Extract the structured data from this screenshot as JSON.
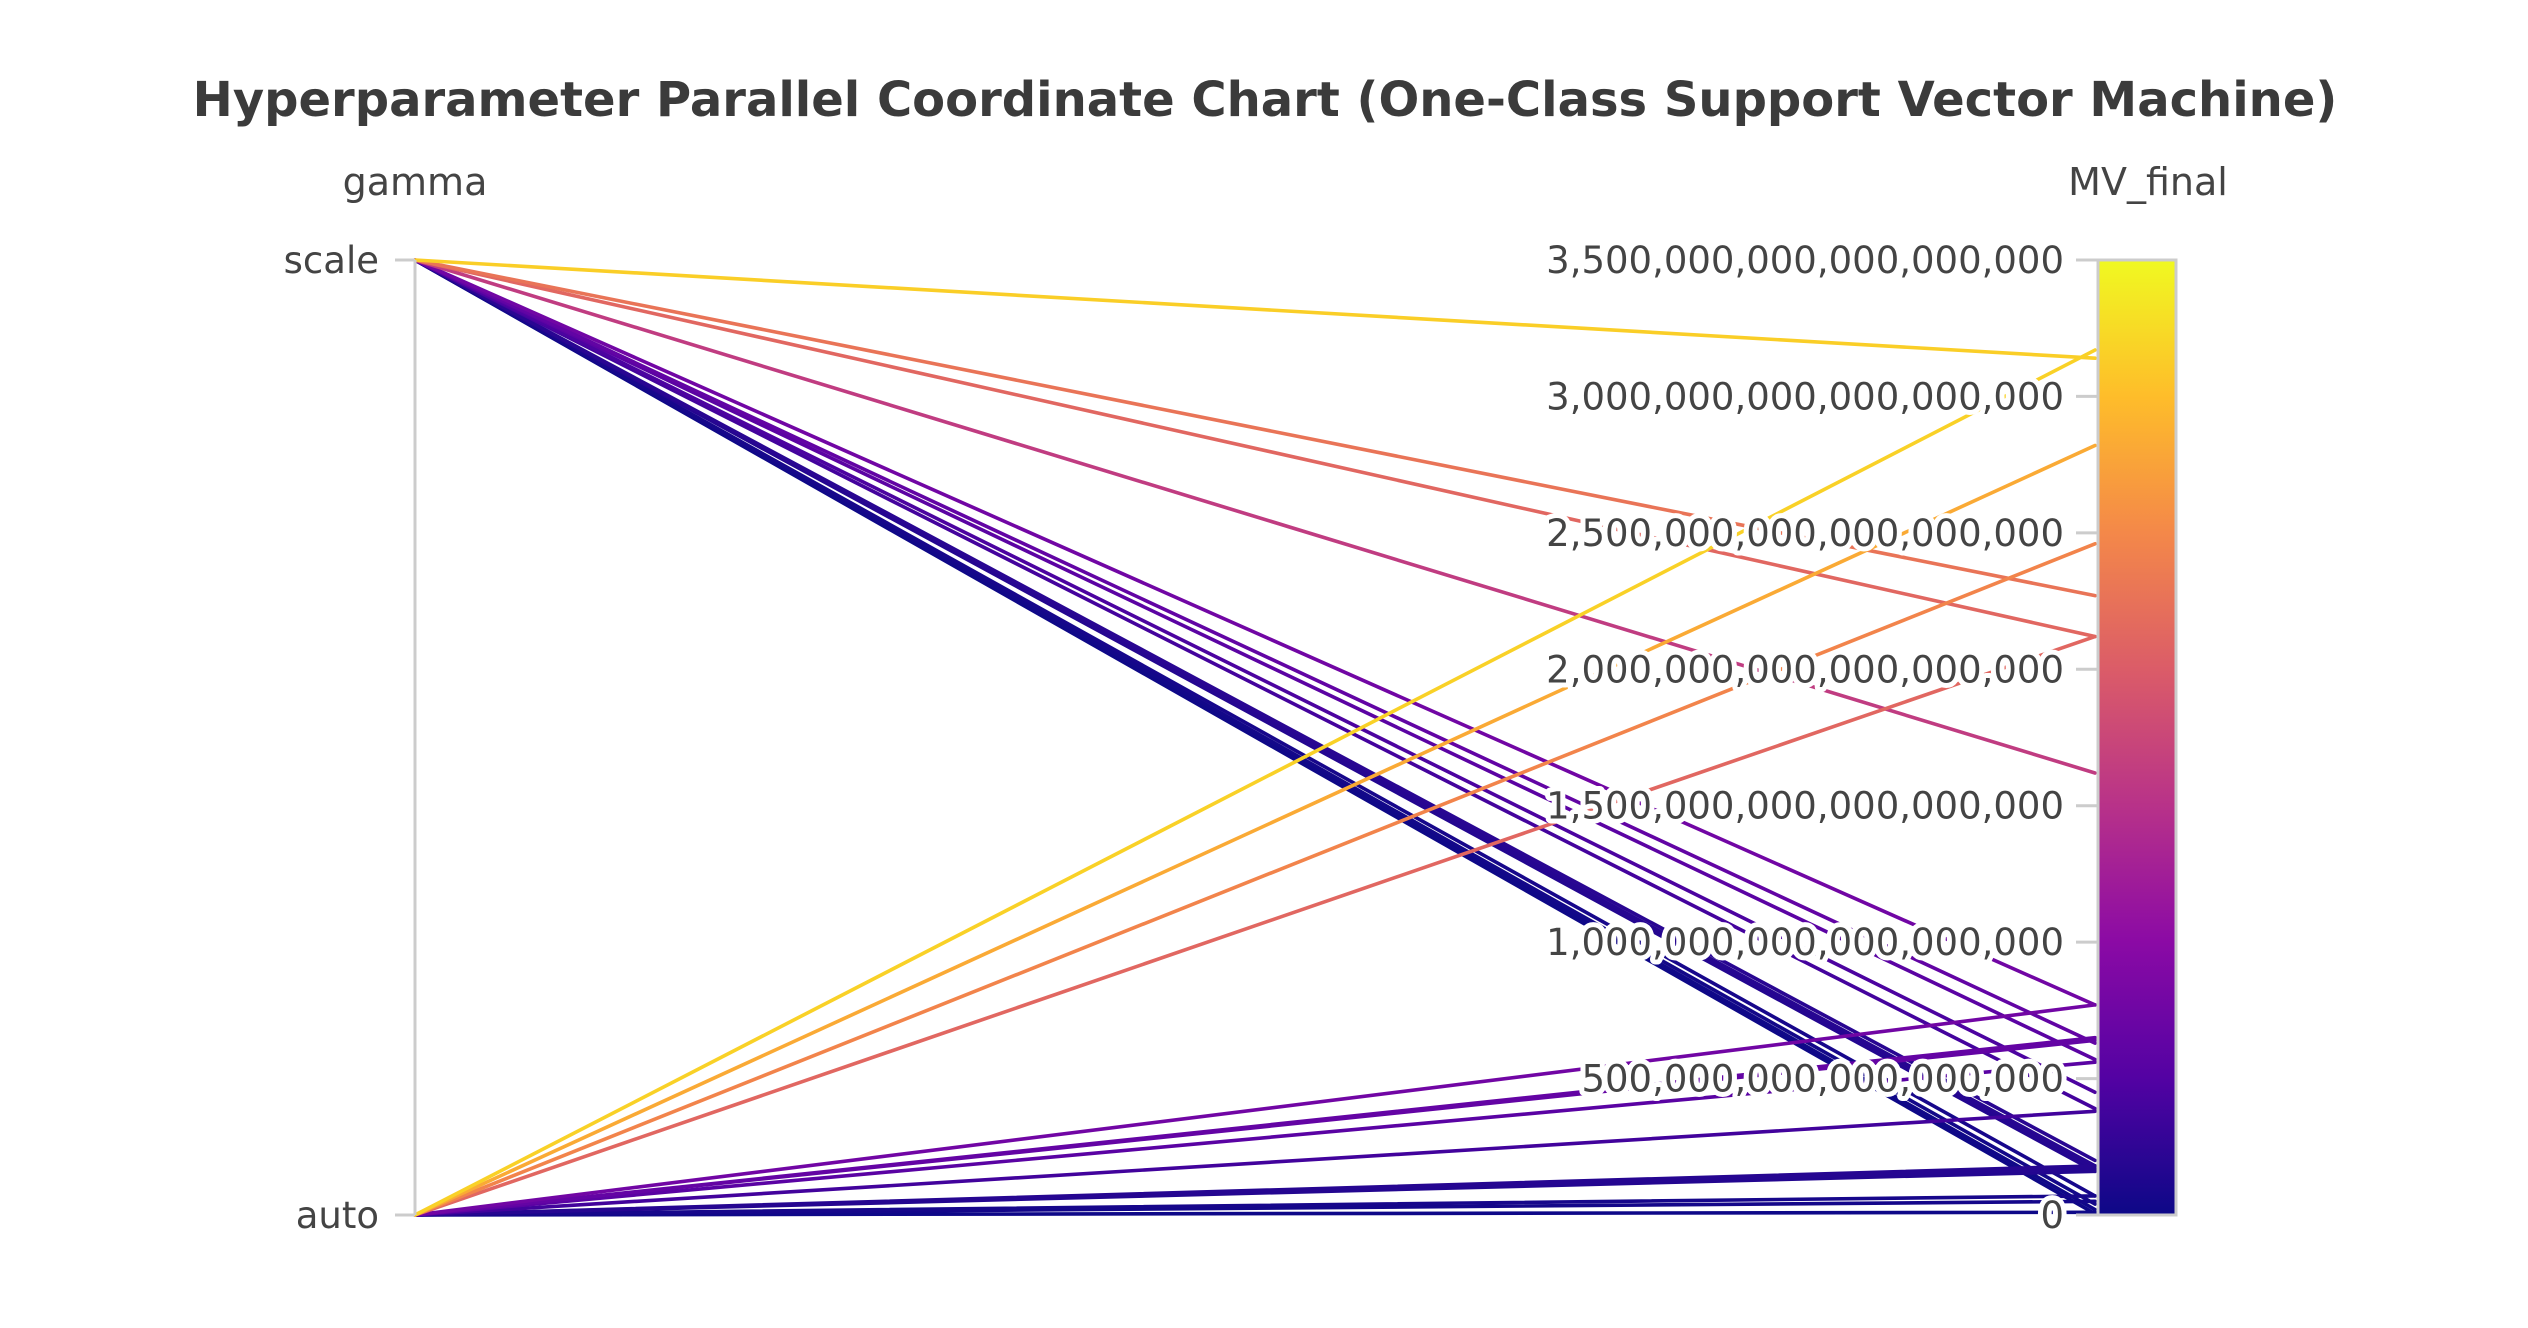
{
  "chart_data": {
    "type": "parallel_coordinates",
    "title": "Hyperparameter Parallel Coordinate Chart (One-Class Support Vector Machine)",
    "dimensions": [
      {
        "label": "gamma",
        "kind": "categorical",
        "categories": [
          "scale",
          "auto"
        ]
      },
      {
        "label": "MV_final",
        "kind": "numeric",
        "range": [
          0,
          3500000000000000000
        ],
        "ticks": [
          {
            "value": 0,
            "label": "0"
          },
          {
            "value": 500000000000000000,
            "label": "500,000,000,000,000,000"
          },
          {
            "value": 1000000000000000000,
            "label": "1,000,000,000,000,000,000"
          },
          {
            "value": 1500000000000000000,
            "label": "1,500,000,000,000,000,000"
          },
          {
            "value": 2000000000000000000,
            "label": "2,000,000,000,000,000,000"
          },
          {
            "value": 2500000000000000000,
            "label": "2,500,000,000,000,000,000"
          },
          {
            "value": 3000000000000000000,
            "label": "3,000,000,000,000,000,000"
          },
          {
            "value": 3500000000000000000,
            "label": "3,500,000,000,000,000,000"
          }
        ]
      }
    ],
    "colorscale": [
      "#0d0887",
      "#5302a3",
      "#8b0aa5",
      "#b83289",
      "#db5c68",
      "#f48849",
      "#febd2a",
      "#f0f921"
    ],
    "color_dimension": "MV_final",
    "lines": [
      {
        "gamma": "scale",
        "MV_final": 3140000000000000000
      },
      {
        "gamma": "scale",
        "MV_final": 2270000000000000000
      },
      {
        "gamma": "scale",
        "MV_final": 2120000000000000000
      },
      {
        "gamma": "scale",
        "MV_final": 1620000000000000000
      },
      {
        "gamma": "scale",
        "MV_final": 770000000000000000
      },
      {
        "gamma": "scale",
        "MV_final": 630000000000000000
      },
      {
        "gamma": "scale",
        "MV_final": 570000000000000000
      },
      {
        "gamma": "scale",
        "MV_final": 450000000000000000
      },
      {
        "gamma": "scale",
        "MV_final": 390000000000000000
      },
      {
        "gamma": "scale",
        "MV_final": 200000000000000000
      },
      {
        "gamma": "scale",
        "MV_final": 180000000000000000
      },
      {
        "gamma": "scale",
        "MV_final": 170000000000000000
      },
      {
        "gamma": "scale",
        "MV_final": 160000000000000000
      },
      {
        "gamma": "scale",
        "MV_final": 70000000000000000
      },
      {
        "gamma": "scale",
        "MV_final": 40000000000000000
      },
      {
        "gamma": "scale",
        "MV_final": 20000000000000000
      },
      {
        "gamma": "scale",
        "MV_final": 5000000000000000
      },
      {
        "gamma": "auto",
        "MV_final": 3170000000000000000
      },
      {
        "gamma": "auto",
        "MV_final": 2820000000000000000
      },
      {
        "gamma": "auto",
        "MV_final": 2460000000000000000
      },
      {
        "gamma": "auto",
        "MV_final": 2120000000000000000
      },
      {
        "gamma": "auto",
        "MV_final": 770000000000000000
      },
      {
        "gamma": "auto",
        "MV_final": 650000000000000000
      },
      {
        "gamma": "auto",
        "MV_final": 640000000000000000
      },
      {
        "gamma": "auto",
        "MV_final": 560000000000000000
      },
      {
        "gamma": "auto",
        "MV_final": 380000000000000000
      },
      {
        "gamma": "auto",
        "MV_final": 180000000000000000
      },
      {
        "gamma": "auto",
        "MV_final": 170000000000000000
      },
      {
        "gamma": "auto",
        "MV_final": 160000000000000000
      },
      {
        "gamma": "auto",
        "MV_final": 70000000000000000
      },
      {
        "gamma": "auto",
        "MV_final": 50000000000000000
      },
      {
        "gamma": "auto",
        "MV_final": 10000000000000000
      }
    ]
  }
}
